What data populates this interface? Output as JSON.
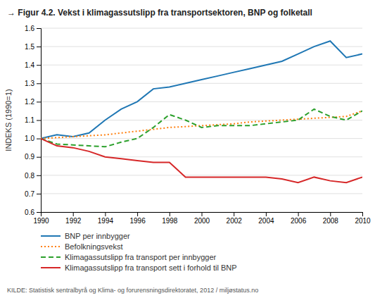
{
  "chart_data": {
    "type": "line",
    "title": "→ Figur 4.2. Vekst i klimagassutslipp fra transportsektoren, BNP og folketall",
    "y_label": "INDEKS (1990=1)",
    "annotations": [
      "KILDE: Statistisk sentralbyrå og Klima- og forurensningsdirektoratet, 2012 / miljøstatus.no"
    ],
    "x": [
      1990,
      1991,
      1992,
      1993,
      1994,
      1995,
      1996,
      1997,
      1998,
      1999,
      2000,
      2001,
      2002,
      2003,
      2004,
      2005,
      2006,
      2007,
      2008,
      2009,
      2010
    ],
    "series": [
      {
        "name": "BNP per innbygger",
        "line_style": "solid",
        "values": [
          1.0,
          1.02,
          1.01,
          1.03,
          1.1,
          1.16,
          1.2,
          1.27,
          1.28,
          1.3,
          1.32,
          1.34,
          1.36,
          1.38,
          1.4,
          1.42,
          1.46,
          1.5,
          1.53,
          1.44,
          1.46
        ]
      },
      {
        "name": "Befolkningsvekst",
        "line_style": "dotted",
        "values": [
          1.0,
          1.005,
          1.01,
          1.015,
          1.02,
          1.03,
          1.04,
          1.05,
          1.06,
          1.065,
          1.07,
          1.075,
          1.08,
          1.09,
          1.095,
          1.1,
          1.105,
          1.11,
          1.115,
          1.12,
          1.15
        ]
      },
      {
        "name": "Klimagassutslipp fra transport per innbygger",
        "line_style": "dashed",
        "values": [
          1.0,
          0.97,
          0.965,
          0.96,
          0.955,
          0.98,
          1.0,
          1.06,
          1.13,
          1.1,
          1.06,
          1.07,
          1.07,
          1.07,
          1.08,
          1.09,
          1.1,
          1.16,
          1.12,
          1.1,
          1.15
        ]
      },
      {
        "name": "Klimagassutslipp fra transport sett i forhold til BNP",
        "line_style": "solid",
        "values": [
          1.0,
          0.96,
          0.95,
          0.93,
          0.9,
          0.89,
          0.88,
          0.87,
          0.87,
          0.79,
          0.79,
          0.79,
          0.79,
          0.79,
          0.79,
          0.78,
          0.76,
          0.79,
          0.77,
          0.76,
          0.79
        ]
      }
    ],
    "xlim": [
      1990,
      2010
    ],
    "xticks": [
      1990,
      1992,
      1994,
      1996,
      1998,
      2000,
      2002,
      2004,
      2006,
      2008,
      2010
    ],
    "ylim": [
      0.6,
      1.6
    ],
    "yticks": [
      0.6,
      0.7,
      0.8,
      0.9,
      {
        "value": 1.0,
        "label": "1.0"
      },
      1.1,
      1.2,
      1.3,
      1.4,
      1.5,
      1.6
    ],
    "grid": "y",
    "legend": "bottom"
  }
}
